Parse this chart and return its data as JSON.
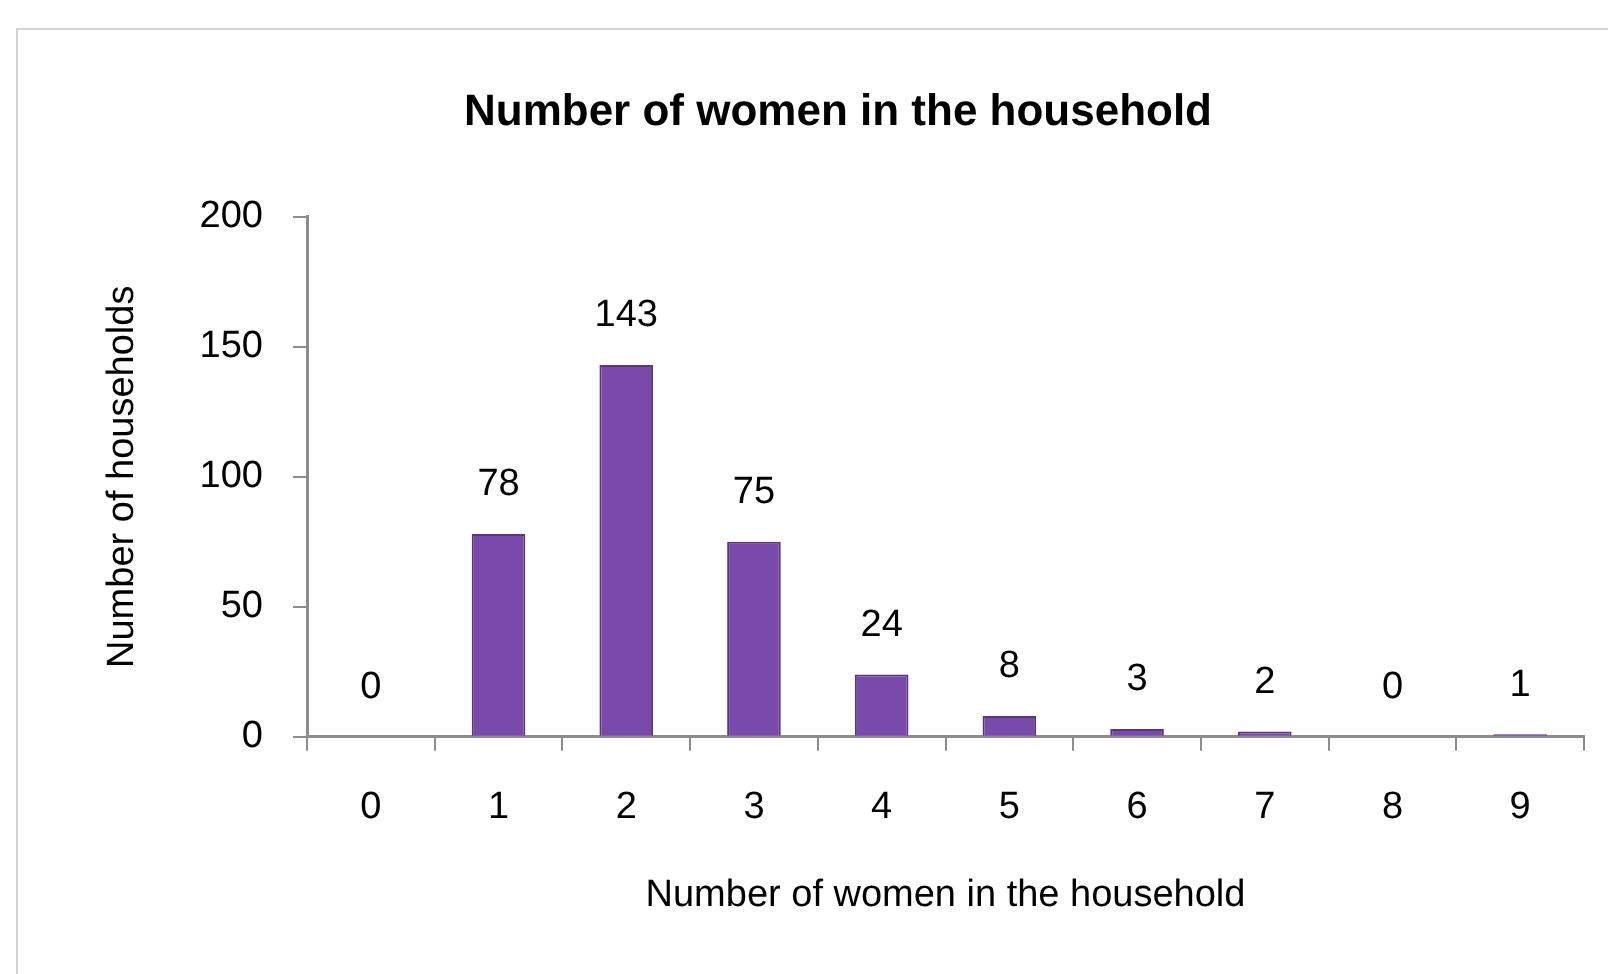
{
  "chart_data": {
    "type": "bar",
    "title": "Number of women in the household",
    "xlabel": "Number of women in the household",
    "ylabel": "Number of households",
    "categories": [
      "0",
      "1",
      "2",
      "3",
      "4",
      "5",
      "6",
      "7",
      "8",
      "9"
    ],
    "values": [
      0,
      78,
      143,
      75,
      24,
      8,
      3,
      2,
      0,
      1
    ],
    "color": "#7a4aab",
    "ylim": [
      0,
      200
    ],
    "yticks": [
      0,
      50,
      100,
      150,
      200
    ],
    "grid": false,
    "legend": false,
    "data_labels": true
  }
}
